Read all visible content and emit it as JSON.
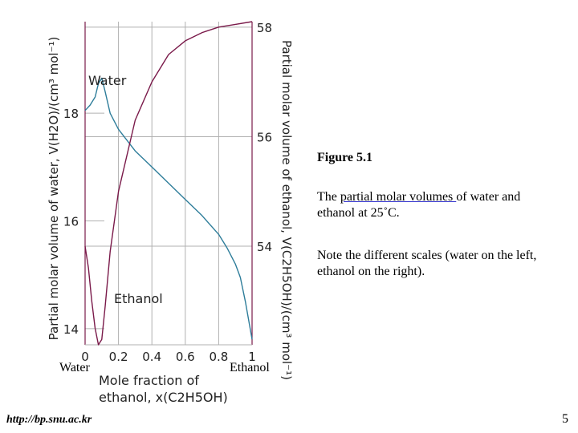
{
  "caption": {
    "title": "Figure 5.1",
    "desc_prefix": "The ",
    "desc_link": "partial molar volumes ",
    "desc_suffix": "of water and ethanol at 25˚C.",
    "note": "Note the different scales (water on the left, ethanol on the right)."
  },
  "labels": {
    "left_end": "Water",
    "right_end": "Ethanol"
  },
  "footer": {
    "url": "http://bp.snu.ac.kr",
    "page": "5"
  },
  "colors": {
    "water_curve": "#2e7d9a",
    "ethanol_curve": "#7a1a4a",
    "grid": "#b0b0b0",
    "axis": "#7a1a4a"
  },
  "chart_data": {
    "type": "line",
    "title": "",
    "xlabel": "Mole fraction of ethanol, x(C2H5OH)",
    "ylabel_left": "Partial molar volume of water, V(H2O)/(cm³ mol⁻¹)",
    "ylabel_right": "Partial molar volume of ethanol, V(C2H5OH)/(cm³ mol⁻¹)",
    "x_ticks": [
      "0",
      "0.2",
      "0.4",
      "0.6",
      "0.8",
      "1"
    ],
    "y_left_ticks": [
      "14",
      "16",
      "18"
    ],
    "y_right_ticks": [
      "54",
      "56",
      "58"
    ],
    "xlim": [
      0,
      1
    ],
    "ylim_left": [
      13.7,
      19.7
    ],
    "ylim_right": [
      52.2,
      58.1
    ],
    "grid": true,
    "series": [
      {
        "name": "Water",
        "axis": "left",
        "x": [
          0,
          0.03,
          0.06,
          0.08,
          0.1,
          0.12,
          0.15,
          0.2,
          0.3,
          0.4,
          0.5,
          0.6,
          0.7,
          0.8,
          0.85,
          0.9,
          0.93,
          0.96,
          1.0
        ],
        "y": [
          18.05,
          18.15,
          18.3,
          18.55,
          18.65,
          18.4,
          18.0,
          17.7,
          17.3,
          17.0,
          16.7,
          16.4,
          16.1,
          15.75,
          15.5,
          15.2,
          14.95,
          14.5,
          13.8
        ]
      },
      {
        "name": "Ethanol",
        "axis": "right",
        "x": [
          0,
          0.02,
          0.04,
          0.06,
          0.08,
          0.1,
          0.12,
          0.15,
          0.2,
          0.3,
          0.4,
          0.5,
          0.6,
          0.7,
          0.8,
          0.9,
          1.0
        ],
        "y": [
          54.0,
          53.6,
          53.0,
          52.5,
          52.2,
          52.3,
          52.9,
          53.9,
          55.0,
          56.3,
          57.0,
          57.5,
          57.75,
          57.9,
          58.0,
          58.05,
          58.1
        ]
      }
    ]
  }
}
